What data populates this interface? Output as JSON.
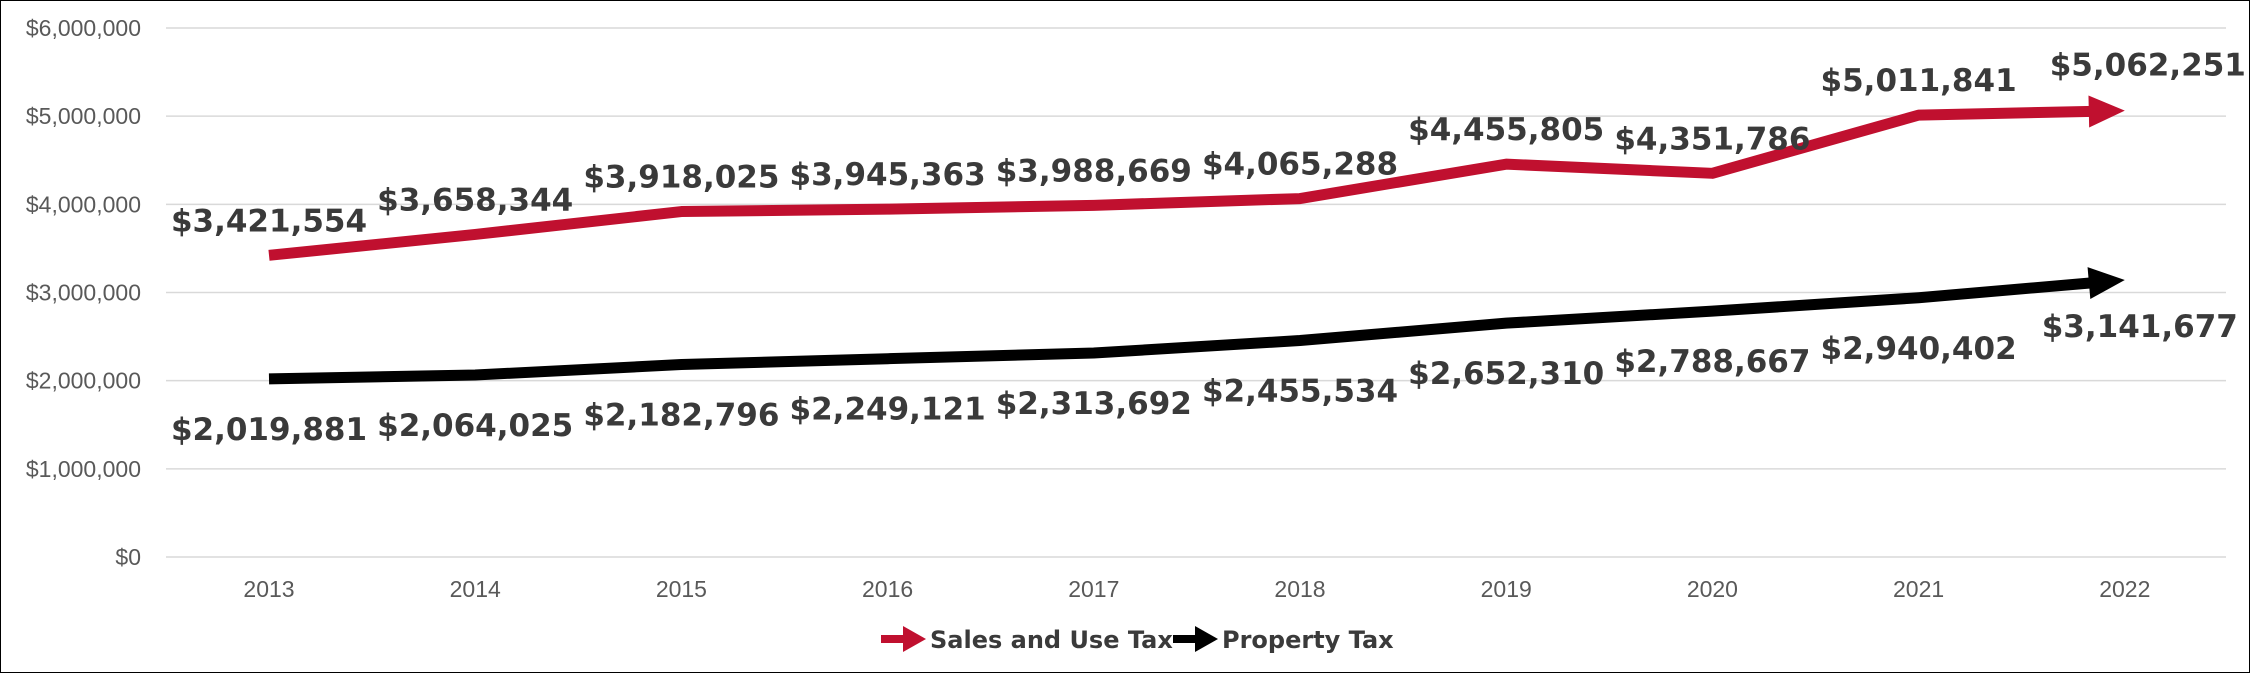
{
  "chart_data": {
    "type": "line",
    "title": "",
    "xlabel": "",
    "ylabel": "",
    "categories": [
      "2013",
      "2014",
      "2015",
      "2016",
      "2017",
      "2018",
      "2019",
      "2020",
      "2021",
      "2022"
    ],
    "ylim": [
      0,
      6000000
    ],
    "yticks": [
      {
        "value": 0,
        "label": "$0"
      },
      {
        "value": 1000000,
        "label": "$1,000,000"
      },
      {
        "value": 2000000,
        "label": "$2,000,000"
      },
      {
        "value": 3000000,
        "label": "$3,000,000"
      },
      {
        "value": 4000000,
        "label": "$4,000,000"
      },
      {
        "value": 5000000,
        "label": "$5,000,000"
      },
      {
        "value": 6000000,
        "label": "$6,000,000"
      }
    ],
    "grid": true,
    "legend_position": "bottom",
    "series": [
      {
        "name": "Sales and Use Tax",
        "color": "#c0102f",
        "label_position": "above",
        "values": [
          3421554,
          3658344,
          3918025,
          3945363,
          3988669,
          4065288,
          4455805,
          4351786,
          5011841,
          5062251
        ],
        "labels": [
          "$3,421,554",
          "$3,658,344",
          "$3,918,025",
          "$3,945,363",
          "$3,988,669",
          "$4,065,288",
          "$4,455,805",
          "$4,351,786",
          "$5,011,841",
          "$5,062,251"
        ]
      },
      {
        "name": "Property Tax",
        "color": "#000000",
        "label_position": "below",
        "values": [
          2019881,
          2064025,
          2182796,
          2249121,
          2313692,
          2455534,
          2652310,
          2788667,
          2940402,
          3141677
        ],
        "labels": [
          "$2,019,881",
          "$2,064,025",
          "$2,182,796",
          "$2,249,121",
          "$2,313,692",
          "$2,455,534",
          "$2,652,310",
          "$2,788,667",
          "$2,940,402",
          "$3,141,677"
        ]
      }
    ]
  }
}
